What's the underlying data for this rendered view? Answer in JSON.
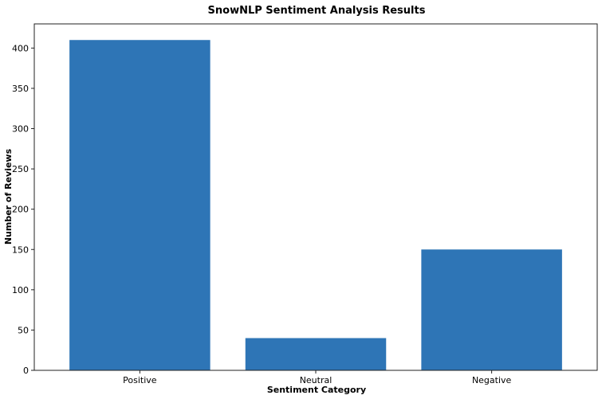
{
  "chart_data": {
    "type": "bar",
    "title": "SnowNLP Sentiment Analysis Results",
    "xlabel": "Sentiment Category",
    "ylabel": "Number of Reviews",
    "categories": [
      "Positive",
      "Neutral",
      "Negative"
    ],
    "values": [
      410,
      40,
      150
    ],
    "ylim": [
      0,
      430
    ],
    "yticks": [
      0,
      50,
      100,
      150,
      200,
      250,
      300,
      350,
      400
    ],
    "grid": false,
    "bar_color": "#2e75b6"
  }
}
